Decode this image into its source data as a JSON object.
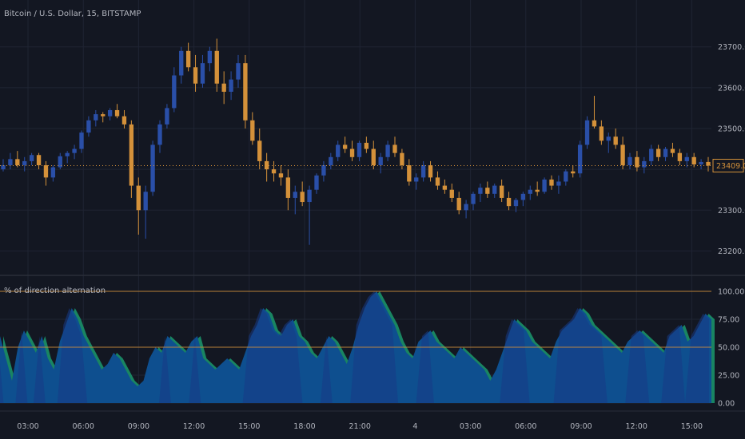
{
  "header": {
    "symbol_title": "Bitcoin / U.S. Dollar, 15, BITSTAMP"
  },
  "colors": {
    "background": "#131722",
    "grid": "#1f2433",
    "up_candle": "#2a4fa8",
    "down_candle": "#d4913a",
    "osc_fill": "#0e4f8f",
    "osc_alt_fill": "#198562",
    "osc_dark_fill": "#173b86",
    "level_line": "#d4913a",
    "text": "#b2b5be",
    "price_tag": "#d4913a"
  },
  "chart_data": [
    {
      "type": "candlestick",
      "title": "Bitcoin / U.S. Dollar, 15, BITSTAMP",
      "ylim": [
        23150,
        23760
      ],
      "y_ticks": [
        "23700.00",
        "23600.00",
        "23500.00",
        "23400.00",
        "23300.00",
        "23200.00"
      ],
      "last_price": "23409.00",
      "grid": true,
      "ohlc": [
        [
          23400,
          23425,
          23395,
          23410
        ],
        [
          23410,
          23440,
          23400,
          23425
        ],
        [
          23425,
          23445,
          23405,
          23410
        ],
        [
          23410,
          23430,
          23395,
          23420
        ],
        [
          23420,
          23440,
          23410,
          23435
        ],
        [
          23435,
          23440,
          23400,
          23410
        ],
        [
          23410,
          23420,
          23360,
          23380
        ],
        [
          23380,
          23410,
          23370,
          23405
        ],
        [
          23405,
          23440,
          23400,
          23432
        ],
        [
          23432,
          23445,
          23415,
          23440
        ],
        [
          23440,
          23460,
          23425,
          23450
        ],
        [
          23450,
          23495,
          23440,
          23490
        ],
        [
          23490,
          23530,
          23480,
          23520
        ],
        [
          23520,
          23545,
          23505,
          23535
        ],
        [
          23535,
          23540,
          23515,
          23530
        ],
        [
          23530,
          23550,
          23520,
          23545
        ],
        [
          23545,
          23560,
          23525,
          23530
        ],
        [
          23530,
          23545,
          23500,
          23510
        ],
        [
          23510,
          23520,
          23330,
          23360
        ],
        [
          23360,
          23380,
          23240,
          23300
        ],
        [
          23300,
          23360,
          23230,
          23345
        ],
        [
          23345,
          23470,
          23335,
          23460
        ],
        [
          23460,
          23520,
          23440,
          23510
        ],
        [
          23510,
          23560,
          23500,
          23550
        ],
        [
          23550,
          23650,
          23540,
          23630
        ],
        [
          23630,
          23700,
          23610,
          23690
        ],
        [
          23690,
          23710,
          23640,
          23650
        ],
        [
          23650,
          23680,
          23590,
          23610
        ],
        [
          23610,
          23680,
          23600,
          23660
        ],
        [
          23660,
          23700,
          23640,
          23690
        ],
        [
          23690,
          23720,
          23590,
          23610
        ],
        [
          23610,
          23640,
          23560,
          23590
        ],
        [
          23590,
          23640,
          23570,
          23620
        ],
        [
          23620,
          23680,
          23600,
          23660
        ],
        [
          23660,
          23680,
          23500,
          23520
        ],
        [
          23520,
          23540,
          23460,
          23470
        ],
        [
          23470,
          23500,
          23400,
          23420
        ],
        [
          23420,
          23440,
          23370,
          23400
        ],
        [
          23400,
          23420,
          23370,
          23390
        ],
        [
          23390,
          23410,
          23360,
          23380
        ],
        [
          23380,
          23400,
          23300,
          23330
        ],
        [
          23330,
          23360,
          23290,
          23345
        ],
        [
          23345,
          23370,
          23310,
          23320
        ],
        [
          23320,
          23360,
          23215,
          23350
        ],
        [
          23350,
          23390,
          23340,
          23385
        ],
        [
          23385,
          23420,
          23370,
          23410
        ],
        [
          23410,
          23440,
          23400,
          23430
        ],
        [
          23430,
          23470,
          23420,
          23460
        ],
        [
          23460,
          23480,
          23440,
          23450
        ],
        [
          23450,
          23470,
          23420,
          23430
        ],
        [
          23430,
          23470,
          23420,
          23465
        ],
        [
          23465,
          23480,
          23440,
          23450
        ],
        [
          23450,
          23470,
          23400,
          23410
        ],
        [
          23410,
          23440,
          23390,
          23430
        ],
        [
          23430,
          23470,
          23420,
          23460
        ],
        [
          23460,
          23480,
          23430,
          23440
        ],
        [
          23440,
          23450,
          23400,
          23410
        ],
        [
          23410,
          23425,
          23360,
          23370
        ],
        [
          23370,
          23390,
          23350,
          23380
        ],
        [
          23380,
          23420,
          23370,
          23410
        ],
        [
          23410,
          23420,
          23370,
          23380
        ],
        [
          23380,
          23395,
          23350,
          23360
        ],
        [
          23360,
          23375,
          23340,
          23350
        ],
        [
          23350,
          23365,
          23320,
          23330
        ],
        [
          23330,
          23345,
          23290,
          23300
        ],
        [
          23300,
          23325,
          23280,
          23315
        ],
        [
          23315,
          23345,
          23300,
          23340
        ],
        [
          23340,
          23365,
          23320,
          23355
        ],
        [
          23355,
          23370,
          23330,
          23340
        ],
        [
          23340,
          23365,
          23330,
          23360
        ],
        [
          23360,
          23375,
          23320,
          23330
        ],
        [
          23330,
          23345,
          23300,
          23310
        ],
        [
          23310,
          23330,
          23295,
          23325
        ],
        [
          23325,
          23345,
          23310,
          23340
        ],
        [
          23340,
          23360,
          23325,
          23350
        ],
        [
          23350,
          23370,
          23335,
          23345
        ],
        [
          23345,
          23380,
          23340,
          23375
        ],
        [
          23375,
          23385,
          23350,
          23360
        ],
        [
          23360,
          23385,
          23340,
          23370
        ],
        [
          23370,
          23400,
          23360,
          23395
        ],
        [
          23395,
          23410,
          23380,
          23390
        ],
        [
          23390,
          23470,
          23380,
          23460
        ],
        [
          23460,
          23530,
          23450,
          23520
        ],
        [
          23520,
          23580,
          23500,
          23505
        ],
        [
          23505,
          23520,
          23460,
          23470
        ],
        [
          23470,
          23490,
          23440,
          23480
        ],
        [
          23480,
          23500,
          23450,
          23460
        ],
        [
          23460,
          23480,
          23400,
          23410
        ],
        [
          23410,
          23440,
          23400,
          23430
        ],
        [
          23430,
          23445,
          23395,
          23405
        ],
        [
          23405,
          23430,
          23390,
          23420
        ],
        [
          23420,
          23460,
          23410,
          23450
        ],
        [
          23450,
          23460,
          23420,
          23430
        ],
        [
          23430,
          23455,
          23420,
          23450
        ],
        [
          23450,
          23465,
          23430,
          23440
        ],
        [
          23440,
          23450,
          23410,
          23420
        ],
        [
          23420,
          23440,
          23405,
          23430
        ],
        [
          23430,
          23440,
          23405,
          23412
        ],
        [
          23412,
          23425,
          23400,
          23418
        ],
        [
          23418,
          23430,
          23395,
          23409
        ]
      ]
    },
    {
      "type": "area",
      "title": "% of direction alternation",
      "ylim": [
        0,
        100
      ],
      "y_ticks": [
        "100.00",
        "75.00",
        "50.00",
        "25.00",
        "0.00"
      ],
      "levels": [
        100,
        50
      ],
      "x_tick_labels": [
        "03:00",
        "06:00",
        "09:00",
        "12:00",
        "15:00",
        "18:00",
        "21:00",
        "4",
        "03:00",
        "06:00",
        "09:00",
        "12:00",
        "15:00"
      ],
      "series": [
        {
          "values": [
            60,
            40,
            20,
            50,
            65,
            55,
            45,
            60,
            40,
            30,
            55,
            70,
            85,
            75,
            60,
            50,
            40,
            30,
            35,
            45,
            40,
            30,
            20,
            15,
            20,
            40,
            50,
            45,
            60,
            55,
            50,
            45,
            55,
            60,
            40,
            35,
            30,
            35,
            40,
            35,
            30,
            45,
            60,
            70,
            85,
            80,
            65,
            60,
            70,
            75,
            60,
            55,
            45,
            40,
            50,
            60,
            55,
            45,
            35,
            50,
            70,
            85,
            95,
            100,
            90,
            80,
            70,
            55,
            45,
            40,
            55,
            60,
            65,
            55,
            50,
            45,
            40,
            50,
            45,
            40,
            35,
            30,
            20,
            30,
            45,
            60,
            75,
            70,
            65,
            55,
            50,
            45,
            40,
            55,
            65,
            70,
            75,
            85,
            80,
            70,
            65,
            60,
            55,
            50,
            45,
            55,
            60,
            65,
            60,
            55,
            50,
            45,
            60,
            65,
            70,
            55,
            60,
            70,
            80,
            75
          ]
        }
      ]
    }
  ]
}
